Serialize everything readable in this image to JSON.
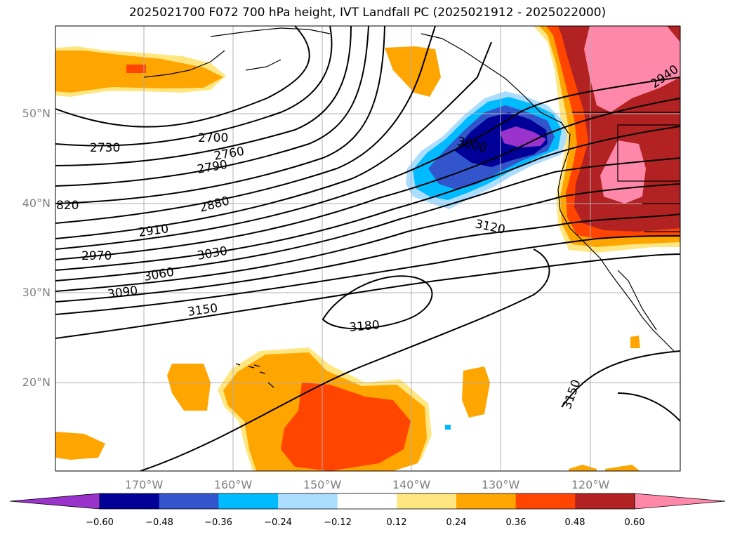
{
  "title": "2025021700 F072 700 hPa height, IVT Landfall PC (2025021912 - 2025022000)",
  "lat_labels": [
    "50°N",
    "40°N",
    "30°N",
    "20°N"
  ],
  "lon_labels": [
    "170°W",
    "160°W",
    "150°W",
    "140°W",
    "130°W",
    "120°W"
  ],
  "contour_labels": [
    "2700",
    "2730",
    "2760",
    "2790",
    "820",
    "2880",
    "2910",
    "2970",
    "3030",
    "3060",
    "3090",
    "3150",
    "3180",
    "3000",
    "3120",
    "2940",
    "3150"
  ],
  "colorbar": {
    "ticks": [
      "−0.60",
      "−0.48",
      "−0.36",
      "−0.24",
      "−0.12",
      "0.12",
      "0.24",
      "0.36",
      "0.48",
      "0.60"
    ],
    "colors": [
      "#9933cc",
      "#000099",
      "#3355cc",
      "#00bbff",
      "#aaddff",
      "#ffffff",
      "#ffe680",
      "#ffa500",
      "#ff4500",
      "#b22222",
      "#ff88aa"
    ]
  }
}
